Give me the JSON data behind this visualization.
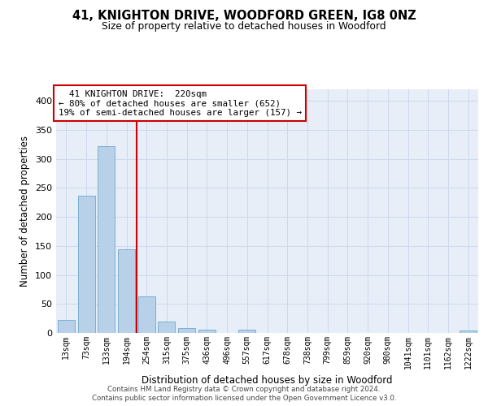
{
  "title1": "41, KNIGHTON DRIVE, WOODFORD GREEN, IG8 0NZ",
  "title2": "Size of property relative to detached houses in Woodford",
  "xlabel": "Distribution of detached houses by size in Woodford",
  "ylabel": "Number of detached properties",
  "bar_labels": [
    "13sqm",
    "73sqm",
    "133sqm",
    "194sqm",
    "254sqm",
    "315sqm",
    "375sqm",
    "436sqm",
    "496sqm",
    "557sqm",
    "617sqm",
    "678sqm",
    "738sqm",
    "799sqm",
    "859sqm",
    "920sqm",
    "980sqm",
    "1041sqm",
    "1101sqm",
    "1162sqm",
    "1222sqm"
  ],
  "bar_values": [
    22,
    236,
    322,
    144,
    63,
    20,
    9,
    5,
    0,
    5,
    0,
    0,
    0,
    0,
    0,
    0,
    0,
    0,
    0,
    0,
    4
  ],
  "bar_color": "#b8d0e8",
  "bar_edge_color": "#7aafd4",
  "vline_color": "#cc0000",
  "annotation_line1": "  41 KNIGHTON DRIVE:  220sqm",
  "annotation_line2": "← 80% of detached houses are smaller (652)",
  "annotation_line3": "19% of semi-detached houses are larger (157) →",
  "annotation_box_color": "#ffffff",
  "annotation_box_edge": "#cc0000",
  "ylim": [
    0,
    420
  ],
  "yticks": [
    0,
    50,
    100,
    150,
    200,
    250,
    300,
    350,
    400
  ],
  "grid_color": "#ccd8ec",
  "bg_color": "#e8eef8",
  "footer1": "Contains HM Land Registry data © Crown copyright and database right 2024.",
  "footer2": "Contains public sector information licensed under the Open Government Licence v3.0."
}
